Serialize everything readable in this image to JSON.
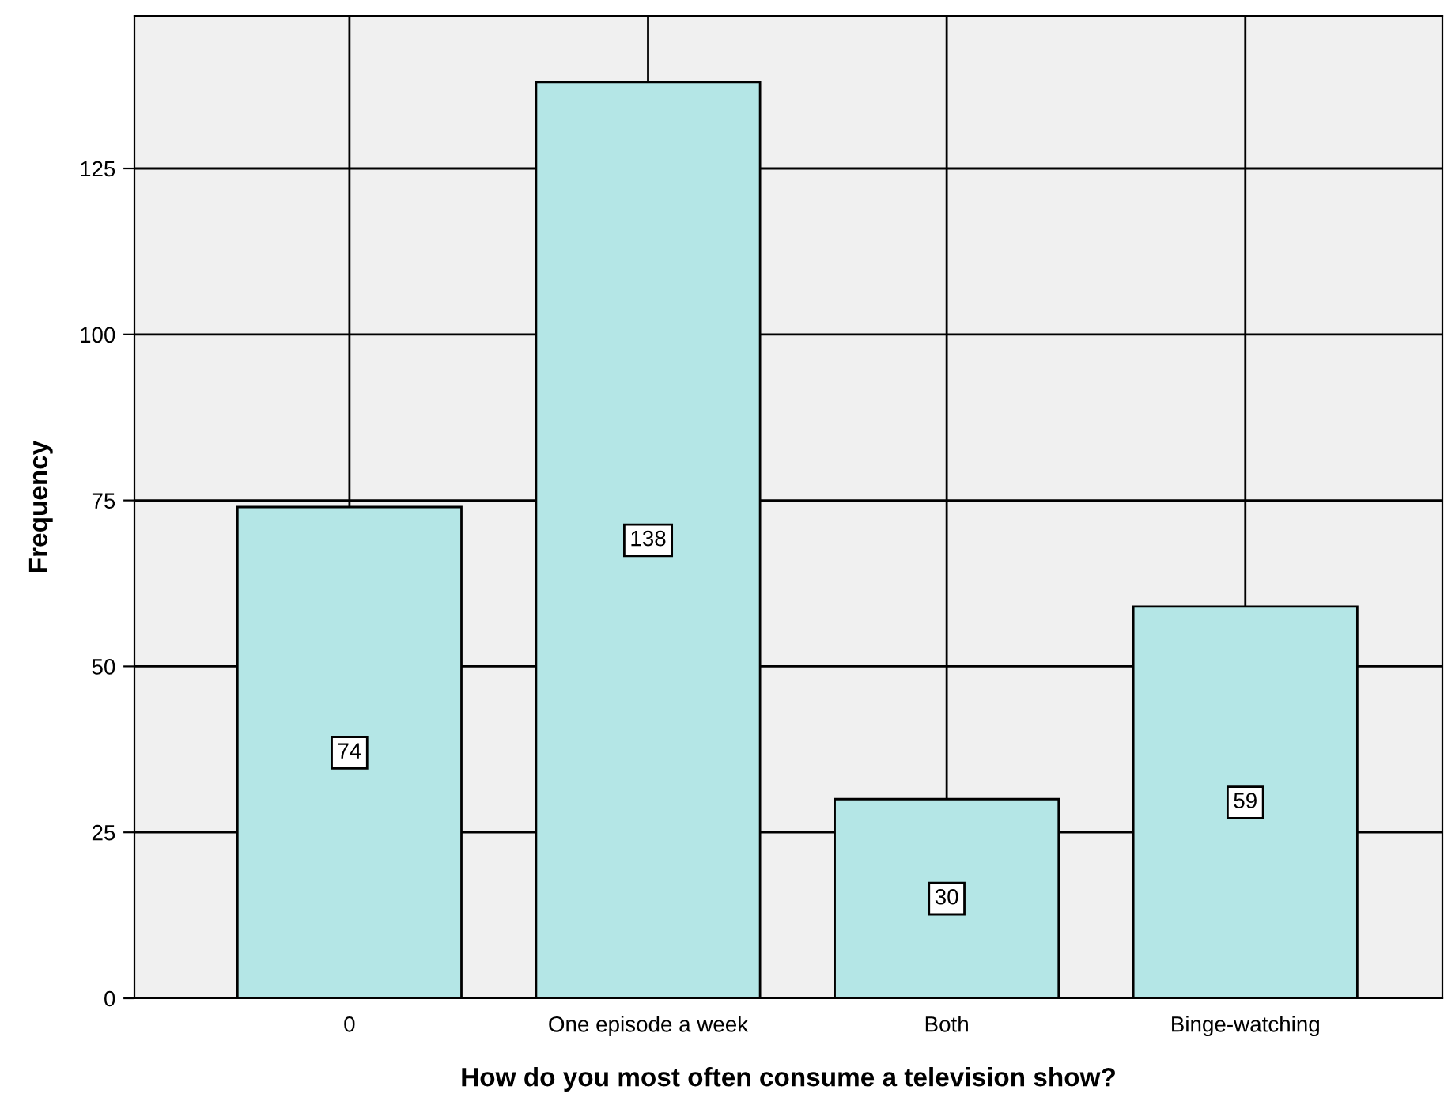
{
  "chart_data": {
    "type": "bar",
    "xlabel": "How do you most often consume a television show?",
    "ylabel": "Frequency",
    "categories": [
      "0",
      "One episode a week",
      "Both",
      "Binge-watching"
    ],
    "values": [
      74,
      138,
      30,
      59
    ],
    "color": "#b4e6e6",
    "ylim": [
      0,
      148
    ],
    "yticks": [
      0,
      25,
      50,
      75,
      100,
      125
    ],
    "grid": true,
    "data_labels": true
  }
}
